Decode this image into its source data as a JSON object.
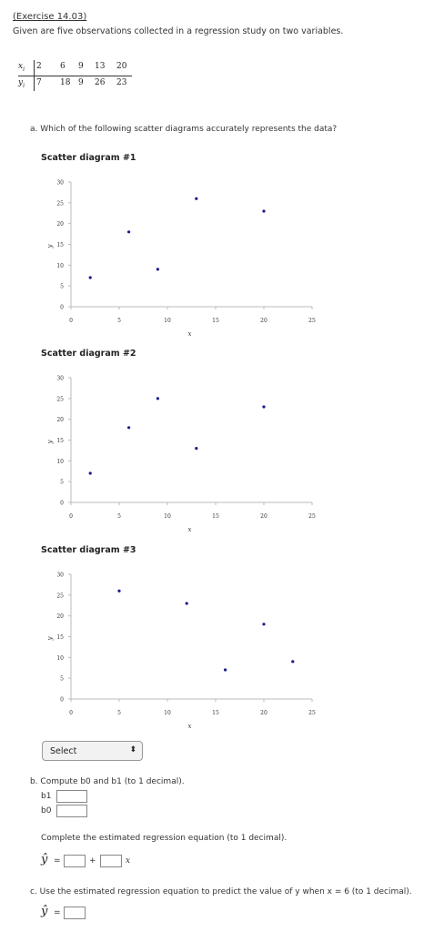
{
  "header": {
    "exercise_link": "(Exercise 14.03)",
    "intro": "Given are five observations collected in a regression study on two variables."
  },
  "data_table": {
    "x_label": "x",
    "x_sub": "i",
    "y_label": "y",
    "y_sub": "i",
    "x": [
      "2",
      "6",
      "9",
      "13",
      "20"
    ],
    "y": [
      "7",
      "18",
      "9",
      "26",
      "23"
    ]
  },
  "part_a": {
    "question": "a. Which of the following scatter diagrams accurately represents the data?",
    "select_label": "Select",
    "select_arrow": "⬍"
  },
  "chart_data": [
    {
      "type": "scatter",
      "title": "Scatter diagram #1",
      "xlabel": "x",
      "ylabel": "y",
      "xlim": [
        0,
        25
      ],
      "ylim": [
        0,
        30
      ],
      "xticks": [
        0,
        5,
        10,
        15,
        20,
        25
      ],
      "yticks": [
        0,
        5,
        10,
        15,
        20,
        25,
        30
      ],
      "point_color": "#1a1a8c",
      "x": [
        2,
        6,
        9,
        13,
        20
      ],
      "y": [
        7,
        18,
        9,
        26,
        23
      ]
    },
    {
      "type": "scatter",
      "title": "Scatter diagram #2",
      "xlabel": "x",
      "ylabel": "y",
      "xlim": [
        0,
        25
      ],
      "ylim": [
        0,
        30
      ],
      "xticks": [
        0,
        5,
        10,
        15,
        20,
        25
      ],
      "yticks": [
        0,
        5,
        10,
        15,
        20,
        25,
        30
      ],
      "point_color": "#1a1a8c",
      "x": [
        2,
        6,
        9,
        13,
        20
      ],
      "y": [
        7,
        18,
        25,
        13,
        23
      ]
    },
    {
      "type": "scatter",
      "title": "Scatter diagram #3",
      "xlabel": "x",
      "ylabel": "y",
      "xlim": [
        0,
        25
      ],
      "ylim": [
        0,
        30
      ],
      "xticks": [
        0,
        5,
        10,
        15,
        20,
        25
      ],
      "yticks": [
        0,
        5,
        10,
        15,
        20,
        25,
        30
      ],
      "point_color": "#1a1a8c",
      "x": [
        5,
        12,
        16,
        20,
        23
      ],
      "y": [
        26,
        23,
        7,
        18,
        9
      ]
    }
  ],
  "part_b": {
    "question": "b. Compute b0 and b1 (to 1 decimal).",
    "b1_label": "b1",
    "b0_label": "b0",
    "equation_prompt": "Complete the estimated regression equation (to 1 decimal).",
    "yhat": "ŷ",
    "equals": "=",
    "plus": "+",
    "x_var": "x"
  },
  "part_c": {
    "question": "c. Use the estimated regression equation to predict the value of y when x = 6 (to 1 decimal).",
    "yhat": "ŷ",
    "equals": "="
  }
}
